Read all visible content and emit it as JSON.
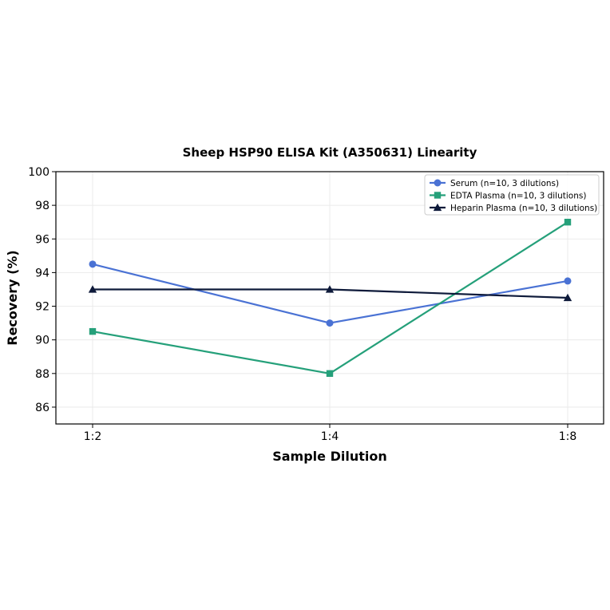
{
  "chart_data": {
    "type": "line",
    "title": "Sheep HSP90 ELISA Kit (A350631) Linearity",
    "xlabel": "Sample Dilution",
    "ylabel": "Recovery (%)",
    "categories": [
      "1:2",
      "1:4",
      "1:8"
    ],
    "ylim": [
      85,
      100
    ],
    "yticks": [
      86,
      88,
      90,
      92,
      94,
      96,
      98,
      100
    ],
    "grid": true,
    "legend_position": "top-right",
    "series": [
      {
        "name": "Serum (n=10, 3 dilutions)",
        "values": [
          94.5,
          91.0,
          93.5
        ],
        "color": "#4a72d4",
        "marker": "circle"
      },
      {
        "name": "EDTA Plasma (n=10, 3 dilutions)",
        "values": [
          90.5,
          88.0,
          97.0
        ],
        "color": "#25a07a",
        "marker": "square"
      },
      {
        "name": "Heparin Plasma (n=10, 3 dilutions)",
        "values": [
          93.0,
          93.0,
          92.5
        ],
        "color": "#0e1a3a",
        "marker": "triangle"
      }
    ]
  }
}
